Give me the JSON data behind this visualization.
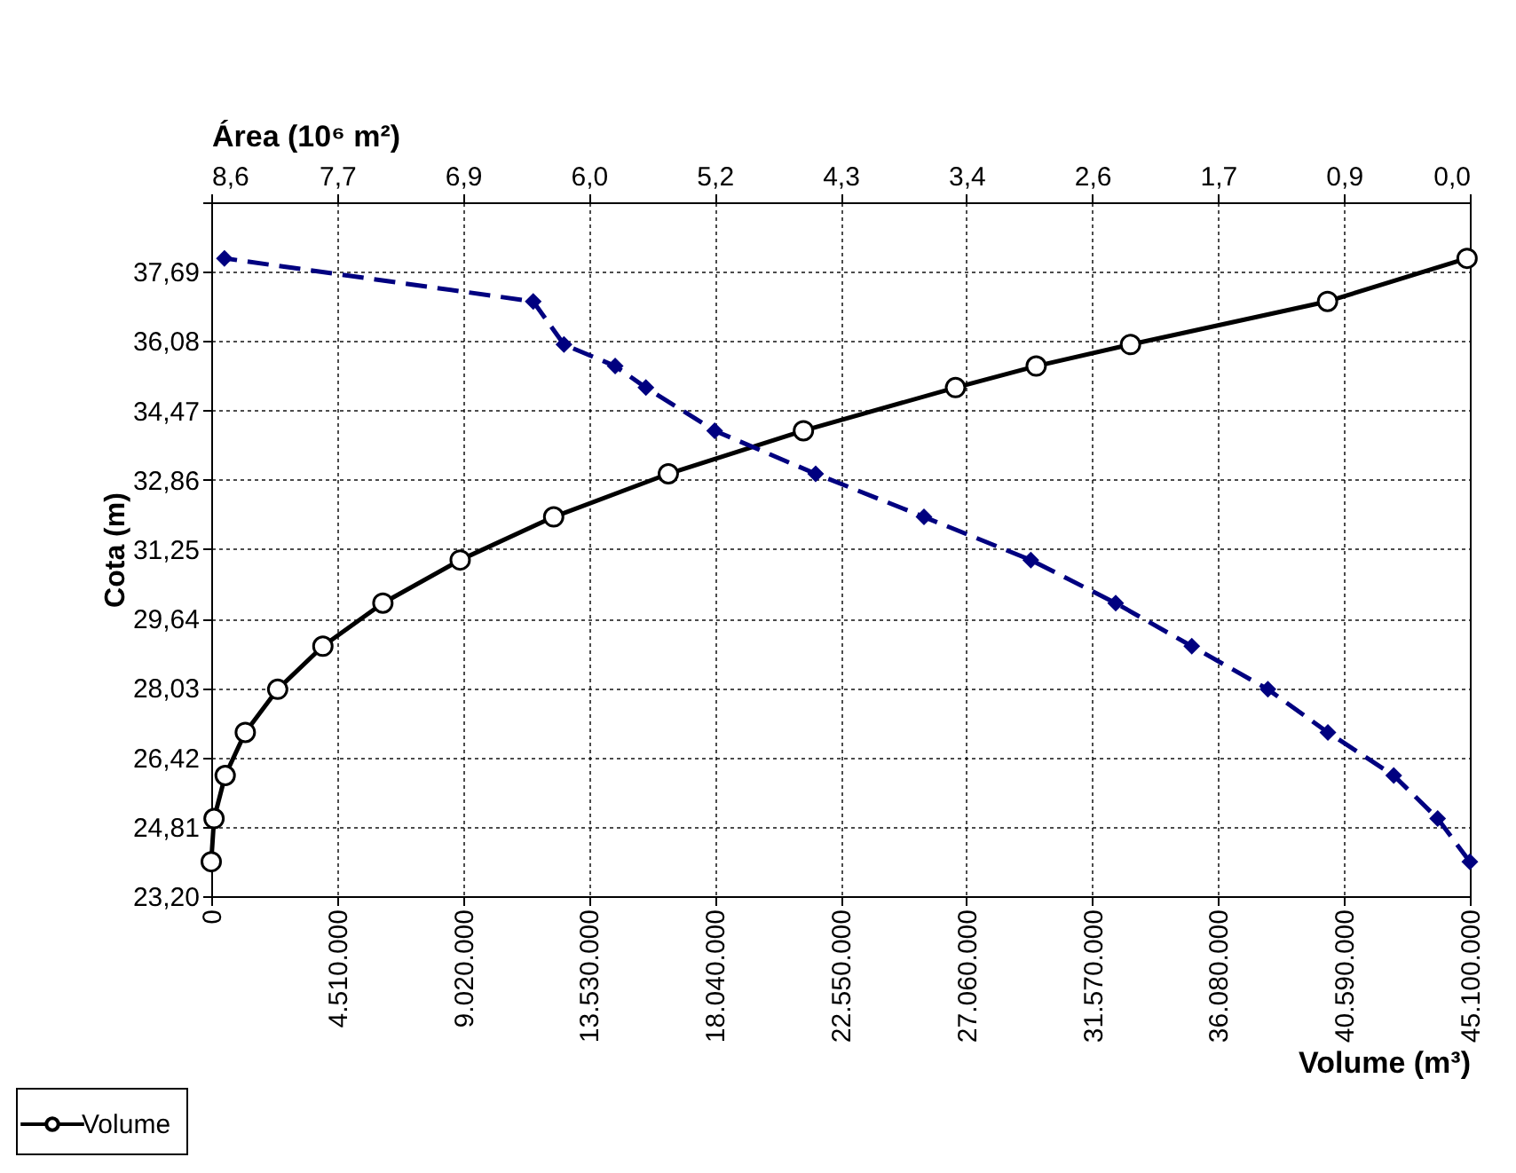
{
  "chart_data": {
    "type": "line",
    "xlabel": "Volume (m³)",
    "x2label": "Área (10⁶ m²)",
    "ylabel": "Cota (m)",
    "xlim": [
      0,
      45100000
    ],
    "xticks": [
      0,
      {
        "value": 4510000,
        "label": "4.510.000"
      },
      {
        "value": 9020000,
        "label": "9.020.000"
      },
      {
        "value": 13530000,
        "label": "13.530.000"
      },
      {
        "value": 18040000,
        "label": "18.040.000"
      },
      {
        "value": 22550000,
        "label": "22.550.000"
      },
      {
        "value": 27060000,
        "label": "27.060.000"
      },
      {
        "value": 31570000,
        "label": "31.570.000"
      },
      {
        "value": 36080000,
        "label": "36.080.000"
      },
      {
        "value": 40590000,
        "label": "40.590.000"
      },
      {
        "value": 45100000,
        "label": "45.100.000"
      }
    ],
    "x2lim": [
      8.6,
      0
    ],
    "x2ticks": [
      {
        "value": 8.6,
        "label": "8,6"
      },
      {
        "value": 7.74,
        "label": "7,7"
      },
      {
        "value": 6.88,
        "label": "6,9"
      },
      {
        "value": 6.02,
        "label": "6,0"
      },
      {
        "value": 5.16,
        "label": "5,2"
      },
      {
        "value": 4.3,
        "label": "4,3"
      },
      {
        "value": 3.44,
        "label": "3,4"
      },
      {
        "value": 2.58,
        "label": "2,6"
      },
      {
        "value": 1.72,
        "label": "1,7"
      },
      {
        "value": 0.86,
        "label": "0,9"
      },
      {
        "value": 0,
        "label": "0,0"
      }
    ],
    "ylim": [
      23.2,
      39.3
    ],
    "yticks": [
      {
        "value": 23.2,
        "label": "23,20"
      },
      {
        "value": 24.81,
        "label": "24,81"
      },
      {
        "value": 26.42,
        "label": "26,42"
      },
      {
        "value": 28.03,
        "label": "28,03"
      },
      {
        "value": 29.64,
        "label": "29,64"
      },
      {
        "value": 31.25,
        "label": "31,25"
      },
      {
        "value": 32.86,
        "label": "32,86"
      },
      {
        "value": 34.47,
        "label": "34,47"
      },
      {
        "value": 36.08,
        "label": "36,08"
      },
      {
        "value": 37.69,
        "label": "37,69"
      },
      {
        "value": 39.3,
        "label": null
      }
    ],
    "grid": true,
    "legend": "bottom left",
    "series": [
      {
        "name": "Volume",
        "color": "#000000",
        "marker": "circle",
        "line_style": "solid",
        "x": [
          0,
          100000,
          500000,
          1220000,
          2380000,
          4000000,
          6150000,
          8920000,
          12270000,
          16380000,
          21220000,
          26670000,
          29560000,
          32940000,
          40000000,
          45000000
        ],
        "values": [
          24,
          25,
          26,
          27,
          28,
          29,
          30,
          31,
          32,
          33,
          34,
          35,
          35.5,
          36,
          37,
          38
        ]
      },
      {
        "color": "#000080",
        "marker": "diamond",
        "line_style": "dashed",
        "axis": "x2",
        "x": [
          0,
          0.22,
          0.52,
          0.97,
          1.38,
          1.9,
          2.42,
          3.0,
          3.73,
          4.47,
          5.16,
          5.63,
          5.84,
          6.19,
          6.4,
          8.51
        ],
        "values": [
          24,
          25,
          26,
          27,
          28,
          29,
          30,
          31,
          32,
          33,
          34,
          35,
          35.5,
          36,
          37,
          38
        ]
      }
    ]
  }
}
